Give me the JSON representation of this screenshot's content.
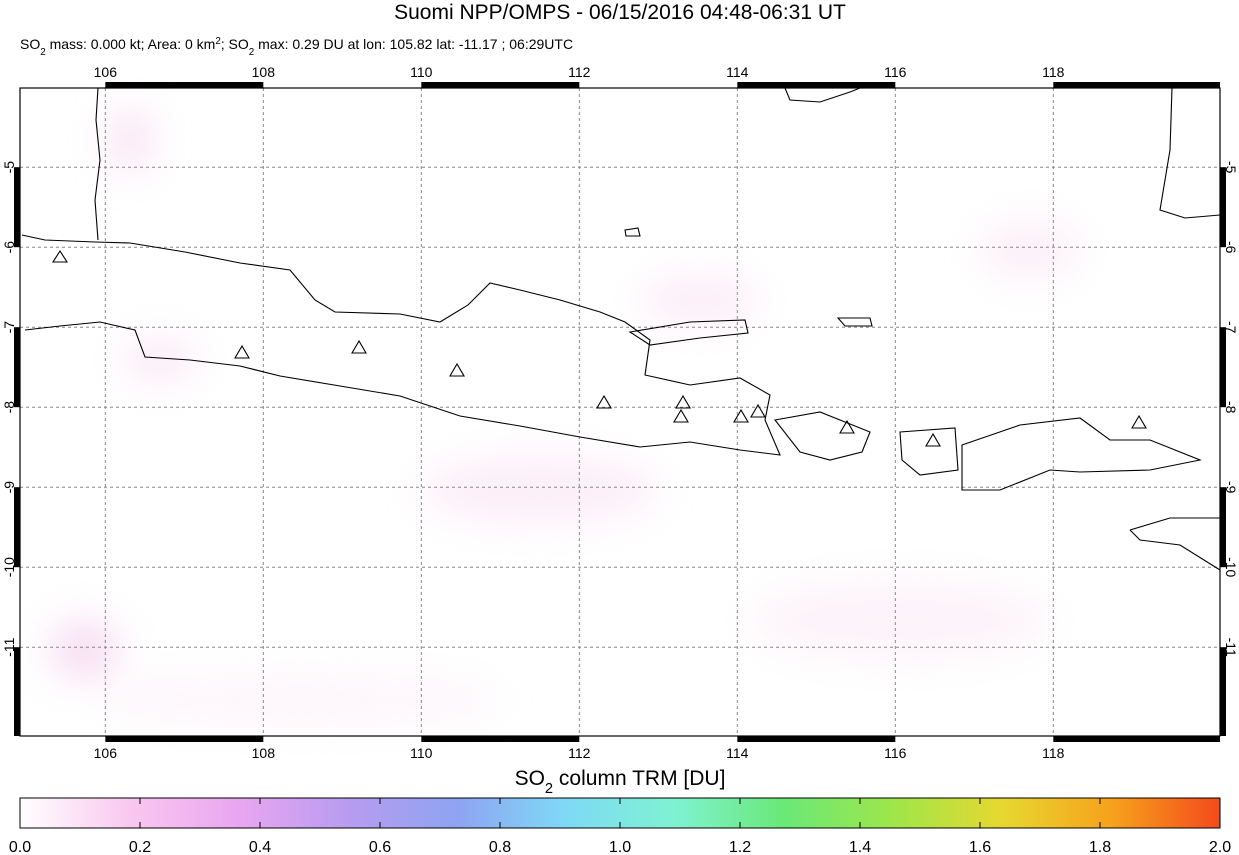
{
  "map": {
    "title": "Suomi NPP/OMPS - 06/15/2016 04:48-06:31 UT",
    "subtitle_parts": [
      "SO",
      "2",
      " mass: 0.000 kt; Area: 0 km",
      "2",
      "; SO",
      "2",
      " max: 0.29 DU at lon: 105.82 lat: -11.17 ; 06:29UTC"
    ],
    "xlim": [
      104.92,
      120.11
    ],
    "ylim": [
      -12.11,
      -4.01
    ],
    "xticks": [
      106,
      108,
      110,
      112,
      114,
      116,
      118
    ],
    "yticks": [
      -5,
      -6,
      -7,
      -8,
      -9,
      -10,
      -11
    ],
    "grid": true,
    "colorbar": {
      "label_parts": [
        "SO",
        "2",
        " column TRM [DU]"
      ],
      "lim": [
        0,
        2
      ],
      "ticks": [
        {
          "value": 0,
          "label": "0.0"
        },
        0.2,
        0.4,
        0.6,
        0.8,
        {
          "value": 1,
          "label": "1.0"
        },
        1.2,
        1.4,
        1.6,
        1.8,
        {
          "value": 2,
          "label": "2.0"
        }
      ],
      "colors": [
        "#ffffff",
        "#f9c8f0",
        "#e9a6f0",
        "#b89cf0",
        "#8fa3f2",
        "#7fd9f6",
        "#7ff2d2",
        "#6ae878",
        "#9ee64a",
        "#e6d830",
        "#f7a21c",
        "#f44a1c"
      ]
    }
  }
}
